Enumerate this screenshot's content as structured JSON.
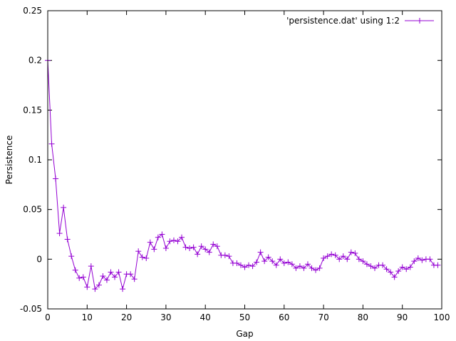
{
  "chart_data": {
    "type": "line",
    "title": "",
    "xlabel": "Gap",
    "ylabel": "Persistence",
    "xlim": [
      0,
      100
    ],
    "ylim": [
      -0.05,
      0.25
    ],
    "xticks": [
      "0",
      "10",
      "20",
      "30",
      "40",
      "50",
      "60",
      "70",
      "80",
      "90",
      "100"
    ],
    "xtick_values": [
      0,
      10,
      20,
      30,
      40,
      50,
      60,
      70,
      80,
      90,
      100
    ],
    "yticks": [
      "-0.05",
      "0",
      "0.05",
      "0.1",
      "0.15",
      "0.2",
      "0.25"
    ],
    "ytick_values": [
      -0.05,
      0,
      0.05,
      0.1,
      0.15,
      0.2,
      0.25
    ],
    "grid": false,
    "legend_position": "top-right",
    "series": [
      {
        "name": "'persistence.dat' using 1:2",
        "color": "#9400d3",
        "marker": "plus",
        "x": [
          0,
          1,
          2,
          3,
          4,
          5,
          6,
          7,
          8,
          9,
          10,
          11,
          12,
          13,
          14,
          15,
          16,
          17,
          18,
          19,
          20,
          21,
          22,
          23,
          24,
          25,
          26,
          27,
          28,
          29,
          30,
          31,
          32,
          33,
          34,
          35,
          36,
          37,
          38,
          39,
          40,
          41,
          42,
          43,
          44,
          45,
          46,
          47,
          48,
          49,
          50,
          51,
          52,
          53,
          54,
          55,
          56,
          57,
          58,
          59,
          60,
          61,
          62,
          63,
          64,
          65,
          66,
          67,
          68,
          69,
          70,
          71,
          72,
          73,
          74,
          75,
          76,
          77,
          78,
          79,
          80,
          81,
          82,
          83,
          84,
          85,
          86,
          87,
          88,
          89,
          90,
          91,
          92,
          93,
          94,
          95,
          96,
          97,
          98,
          99
        ],
        "y": [
          0.2,
          0.116,
          0.081,
          0.026,
          0.052,
          0.02,
          0.003,
          -0.011,
          -0.019,
          -0.018,
          -0.028,
          -0.007,
          -0.03,
          -0.026,
          -0.017,
          -0.021,
          -0.013,
          -0.018,
          -0.013,
          -0.03,
          -0.015,
          -0.015,
          -0.02,
          0.008,
          0.002,
          0.001,
          0.017,
          0.01,
          0.022,
          0.025,
          0.011,
          0.018,
          0.019,
          0.018,
          0.022,
          0.012,
          0.011,
          0.012,
          0.005,
          0.013,
          0.01,
          0.007,
          0.015,
          0.013,
          0.004,
          0.004,
          0.003,
          -0.004,
          -0.004,
          -0.006,
          -0.008,
          -0.006,
          -0.007,
          -0.003,
          0.007,
          -0.002,
          0.002,
          -0.002,
          -0.006,
          0.0,
          -0.004,
          -0.003,
          -0.005,
          -0.009,
          -0.007,
          -0.009,
          -0.005,
          -0.009,
          -0.011,
          -0.009,
          0.001,
          0.003,
          0.005,
          0.004,
          0.0,
          0.003,
          0.0,
          0.007,
          0.006,
          0.0,
          -0.002,
          -0.005,
          -0.007,
          -0.009,
          -0.006,
          -0.006,
          -0.01,
          -0.013,
          -0.018,
          -0.012,
          -0.008,
          -0.01,
          -0.008,
          -0.002,
          0.001,
          -0.001,
          0.0,
          0.0,
          -0.006,
          -0.006
        ]
      }
    ]
  }
}
